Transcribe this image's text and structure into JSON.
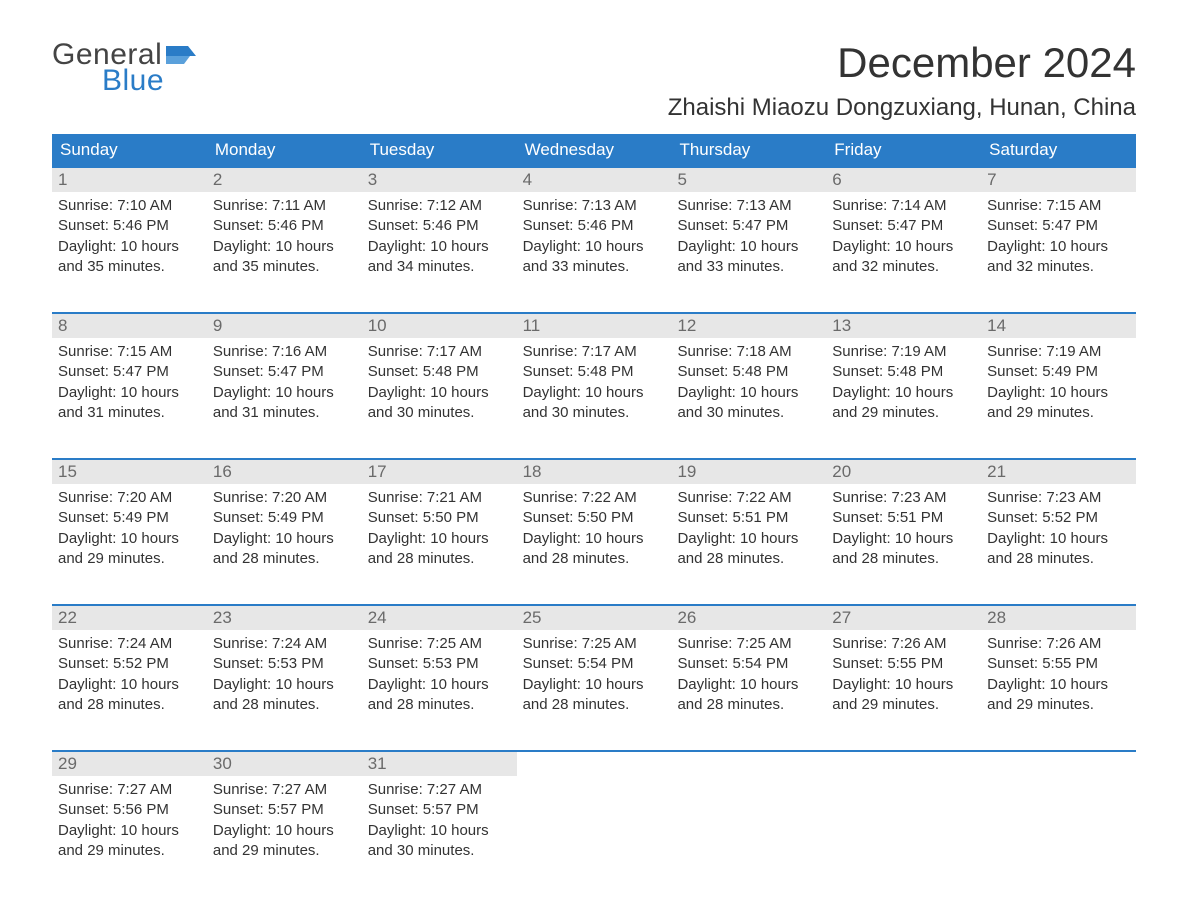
{
  "brand": {
    "general": "General",
    "blue": "Blue",
    "flag_color": "#2a7cc7"
  },
  "title": {
    "month": "December 2024",
    "location": "Zhaishi Miaozu Dongzuxiang, Hunan, China"
  },
  "daysOfWeek": [
    "Sunday",
    "Monday",
    "Tuesday",
    "Wednesday",
    "Thursday",
    "Friday",
    "Saturday"
  ],
  "style": {
    "header_bg": "#2a7cc7",
    "header_text": "#ffffff",
    "row_border": "#2a7cc7",
    "daynum_bg": "#e7e7e7",
    "daynum_color": "#6a6a6a",
    "body_text": "#333333",
    "month_title_fontsize": 42,
    "location_fontsize": 24,
    "dow_fontsize": 17,
    "body_fontsize": 15
  },
  "weeks": [
    [
      {
        "n": "1",
        "lines": [
          "Sunrise: 7:10 AM",
          "Sunset: 5:46 PM",
          "Daylight: 10 hours",
          "and 35 minutes."
        ]
      },
      {
        "n": "2",
        "lines": [
          "Sunrise: 7:11 AM",
          "Sunset: 5:46 PM",
          "Daylight: 10 hours",
          "and 35 minutes."
        ]
      },
      {
        "n": "3",
        "lines": [
          "Sunrise: 7:12 AM",
          "Sunset: 5:46 PM",
          "Daylight: 10 hours",
          "and 34 minutes."
        ]
      },
      {
        "n": "4",
        "lines": [
          "Sunrise: 7:13 AM",
          "Sunset: 5:46 PM",
          "Daylight: 10 hours",
          "and 33 minutes."
        ]
      },
      {
        "n": "5",
        "lines": [
          "Sunrise: 7:13 AM",
          "Sunset: 5:47 PM",
          "Daylight: 10 hours",
          "and 33 minutes."
        ]
      },
      {
        "n": "6",
        "lines": [
          "Sunrise: 7:14 AM",
          "Sunset: 5:47 PM",
          "Daylight: 10 hours",
          "and 32 minutes."
        ]
      },
      {
        "n": "7",
        "lines": [
          "Sunrise: 7:15 AM",
          "Sunset: 5:47 PM",
          "Daylight: 10 hours",
          "and 32 minutes."
        ]
      }
    ],
    [
      {
        "n": "8",
        "lines": [
          "Sunrise: 7:15 AM",
          "Sunset: 5:47 PM",
          "Daylight: 10 hours",
          "and 31 minutes."
        ]
      },
      {
        "n": "9",
        "lines": [
          "Sunrise: 7:16 AM",
          "Sunset: 5:47 PM",
          "Daylight: 10 hours",
          "and 31 minutes."
        ]
      },
      {
        "n": "10",
        "lines": [
          "Sunrise: 7:17 AM",
          "Sunset: 5:48 PM",
          "Daylight: 10 hours",
          "and 30 minutes."
        ]
      },
      {
        "n": "11",
        "lines": [
          "Sunrise: 7:17 AM",
          "Sunset: 5:48 PM",
          "Daylight: 10 hours",
          "and 30 minutes."
        ]
      },
      {
        "n": "12",
        "lines": [
          "Sunrise: 7:18 AM",
          "Sunset: 5:48 PM",
          "Daylight: 10 hours",
          "and 30 minutes."
        ]
      },
      {
        "n": "13",
        "lines": [
          "Sunrise: 7:19 AM",
          "Sunset: 5:48 PM",
          "Daylight: 10 hours",
          "and 29 minutes."
        ]
      },
      {
        "n": "14",
        "lines": [
          "Sunrise: 7:19 AM",
          "Sunset: 5:49 PM",
          "Daylight: 10 hours",
          "and 29 minutes."
        ]
      }
    ],
    [
      {
        "n": "15",
        "lines": [
          "Sunrise: 7:20 AM",
          "Sunset: 5:49 PM",
          "Daylight: 10 hours",
          "and 29 minutes."
        ]
      },
      {
        "n": "16",
        "lines": [
          "Sunrise: 7:20 AM",
          "Sunset: 5:49 PM",
          "Daylight: 10 hours",
          "and 28 minutes."
        ]
      },
      {
        "n": "17",
        "lines": [
          "Sunrise: 7:21 AM",
          "Sunset: 5:50 PM",
          "Daylight: 10 hours",
          "and 28 minutes."
        ]
      },
      {
        "n": "18",
        "lines": [
          "Sunrise: 7:22 AM",
          "Sunset: 5:50 PM",
          "Daylight: 10 hours",
          "and 28 minutes."
        ]
      },
      {
        "n": "19",
        "lines": [
          "Sunrise: 7:22 AM",
          "Sunset: 5:51 PM",
          "Daylight: 10 hours",
          "and 28 minutes."
        ]
      },
      {
        "n": "20",
        "lines": [
          "Sunrise: 7:23 AM",
          "Sunset: 5:51 PM",
          "Daylight: 10 hours",
          "and 28 minutes."
        ]
      },
      {
        "n": "21",
        "lines": [
          "Sunrise: 7:23 AM",
          "Sunset: 5:52 PM",
          "Daylight: 10 hours",
          "and 28 minutes."
        ]
      }
    ],
    [
      {
        "n": "22",
        "lines": [
          "Sunrise: 7:24 AM",
          "Sunset: 5:52 PM",
          "Daylight: 10 hours",
          "and 28 minutes."
        ]
      },
      {
        "n": "23",
        "lines": [
          "Sunrise: 7:24 AM",
          "Sunset: 5:53 PM",
          "Daylight: 10 hours",
          "and 28 minutes."
        ]
      },
      {
        "n": "24",
        "lines": [
          "Sunrise: 7:25 AM",
          "Sunset: 5:53 PM",
          "Daylight: 10 hours",
          "and 28 minutes."
        ]
      },
      {
        "n": "25",
        "lines": [
          "Sunrise: 7:25 AM",
          "Sunset: 5:54 PM",
          "Daylight: 10 hours",
          "and 28 minutes."
        ]
      },
      {
        "n": "26",
        "lines": [
          "Sunrise: 7:25 AM",
          "Sunset: 5:54 PM",
          "Daylight: 10 hours",
          "and 28 minutes."
        ]
      },
      {
        "n": "27",
        "lines": [
          "Sunrise: 7:26 AM",
          "Sunset: 5:55 PM",
          "Daylight: 10 hours",
          "and 29 minutes."
        ]
      },
      {
        "n": "28",
        "lines": [
          "Sunrise: 7:26 AM",
          "Sunset: 5:55 PM",
          "Daylight: 10 hours",
          "and 29 minutes."
        ]
      }
    ],
    [
      {
        "n": "29",
        "lines": [
          "Sunrise: 7:27 AM",
          "Sunset: 5:56 PM",
          "Daylight: 10 hours",
          "and 29 minutes."
        ]
      },
      {
        "n": "30",
        "lines": [
          "Sunrise: 7:27 AM",
          "Sunset: 5:57 PM",
          "Daylight: 10 hours",
          "and 29 minutes."
        ]
      },
      {
        "n": "31",
        "lines": [
          "Sunrise: 7:27 AM",
          "Sunset: 5:57 PM",
          "Daylight: 10 hours",
          "and 30 minutes."
        ]
      },
      {
        "n": "",
        "lines": []
      },
      {
        "n": "",
        "lines": []
      },
      {
        "n": "",
        "lines": []
      },
      {
        "n": "",
        "lines": []
      }
    ]
  ]
}
